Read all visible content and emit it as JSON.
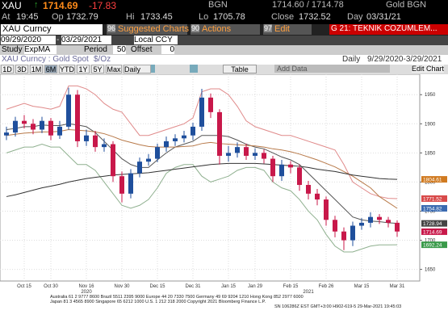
{
  "header": {
    "ticker": "XAU",
    "price": "1714.69",
    "change": "-17.83",
    "source": "BGN",
    "bid_ask": "1714.60 / 1714.78",
    "source_name": "Gold BGN",
    "stats": [
      {
        "label": "At",
        "value": "19:45"
      },
      {
        "label": "Op",
        "value": "1732.79"
      },
      {
        "label": "Hi",
        "value": "1733.45"
      },
      {
        "label": "Lo",
        "value": "1705.78"
      },
      {
        "label": "Close",
        "value": "1732.52"
      },
      {
        "label": "Day",
        "value": "03/31/21"
      }
    ]
  },
  "toolbar": {
    "security": "XAU Curncy",
    "buttons": [
      {
        "num": "96",
        "label": "Suggested Charts"
      },
      {
        "num": "90",
        "label": "Actions"
      },
      {
        "num": "97",
        "label": "Edit"
      }
    ],
    "launchpad": "G 21: TEKNIK COZUMLEM..."
  },
  "range": {
    "start": "09/29/2020",
    "end": "03/29/2021",
    "currency": "Local CCY"
  },
  "study": {
    "label": "Study",
    "name": "ExpMA",
    "period_label": "Period",
    "period": "50",
    "offset_label": "Offset",
    "offset": "0"
  },
  "chart_header": {
    "title": "XAU Curncy : Gold Spot",
    "unit": "$/Oz",
    "frequency": "Daily",
    "period": "9/29/2020-3/29/2021"
  },
  "chart_toolbar": {
    "ranges": [
      "1D",
      "3D",
      "1M",
      "6M",
      "YTD",
      "1Y",
      "5Y",
      "Max"
    ],
    "frequency": "Daily",
    "table": "Table",
    "add_data": "Add Data",
    "edit": "Edit Chart"
  },
  "chart_data": {
    "type": "candlestick",
    "categories": [
      null,
      null,
      "Oct 15",
      null,
      null,
      "Oct 30",
      null,
      null,
      null,
      "Nov 16",
      null,
      null,
      null,
      "Nov 30",
      null,
      null,
      null,
      "Dec 15",
      null,
      null,
      null,
      "Dec 31",
      null,
      null,
      null,
      "Jan 15",
      null,
      null,
      "Jan 29",
      null,
      null,
      null,
      "Feb 15",
      null,
      null,
      null,
      "Feb 26",
      null,
      null,
      null,
      "Mar 15",
      null,
      null,
      null,
      "Mar 31"
    ],
    "year_labels": [
      "2020",
      "2021"
    ],
    "open": [
      1880,
      1885,
      1905,
      1900,
      1890,
      1905,
      1880,
      1895,
      1950,
      1870,
      1880,
      1860,
      1865,
      1810,
      1780,
      1815,
      1835,
      1840,
      1860,
      1870,
      1875,
      1880,
      1895,
      1945,
      1920,
      1845,
      1850,
      1860,
      1845,
      1850,
      1840,
      1810,
      1830,
      1825,
      1795,
      1780,
      1770,
      1735,
      1715,
      1700,
      1725,
      1730,
      1740,
      1735,
      1730
    ],
    "high": [
      1895,
      1912,
      1915,
      1908,
      1912,
      1910,
      1905,
      1962,
      1958,
      1890,
      1888,
      1875,
      1870,
      1818,
      1822,
      1842,
      1848,
      1866,
      1878,
      1882,
      1888,
      1902,
      1960,
      1952,
      1925,
      1862,
      1868,
      1866,
      1858,
      1856,
      1845,
      1838,
      1836,
      1830,
      1802,
      1788,
      1775,
      1742,
      1722,
      1732,
      1738,
      1748,
      1745,
      1740,
      1734
    ],
    "low": [
      1872,
      1878,
      1892,
      1882,
      1884,
      1872,
      1874,
      1890,
      1860,
      1862,
      1852,
      1852,
      1800,
      1765,
      1772,
      1808,
      1828,
      1834,
      1852,
      1862,
      1868,
      1872,
      1888,
      1910,
      1830,
      1835,
      1842,
      1838,
      1838,
      1832,
      1800,
      1802,
      1815,
      1785,
      1770,
      1760,
      1725,
      1705,
      1683,
      1690,
      1718,
      1722,
      1728,
      1722,
      1706
    ],
    "close": [
      1885,
      1905,
      1900,
      1890,
      1905,
      1880,
      1895,
      1950,
      1870,
      1880,
      1860,
      1865,
      1810,
      1780,
      1815,
      1835,
      1840,
      1860,
      1870,
      1875,
      1880,
      1895,
      1945,
      1920,
      1845,
      1850,
      1860,
      1845,
      1850,
      1840,
      1810,
      1830,
      1825,
      1795,
      1780,
      1770,
      1735,
      1715,
      1700,
      1725,
      1730,
      1740,
      1735,
      1730,
      1715
    ],
    "up_color": "#1f4f9c",
    "down_color": "#c8184a",
    "series": [
      {
        "color": "#e08a8a",
        "values": [
          1925,
          1930,
          1935,
          1930,
          1928,
          1925,
          1930,
          1965,
          1965,
          1960,
          1950,
          1935,
          1925,
          1920,
          1900,
          1880,
          1880,
          1885,
          1890,
          1895,
          1900,
          1910,
          1955,
          1960,
          1960,
          1950,
          1930,
          1905,
          1895,
          1890,
          1885,
          1880,
          1880,
          1875,
          1870,
          1865,
          1860,
          1855,
          1830,
          1800,
          1790,
          1780,
          1775,
          1772,
          1771.52
        ]
      },
      {
        "color": "#8fb08f",
        "values": [
          1850,
          1855,
          1860,
          1860,
          1865,
          1860,
          1860,
          1845,
          1830,
          1830,
          1820,
          1800,
          1780,
          1760,
          1755,
          1760,
          1770,
          1790,
          1815,
          1825,
          1830,
          1830,
          1810,
          1800,
          1805,
          1810,
          1820,
          1825,
          1825,
          1820,
          1800,
          1790,
          1785,
          1770,
          1750,
          1735,
          1710,
          1690,
          1680,
          1680,
          1685,
          1690,
          1692,
          1692,
          1692.24
        ]
      },
      {
        "color": "#555555",
        "values": [
          1890,
          1892,
          1895,
          1895,
          1898,
          1897,
          1897,
          1900,
          1898,
          1895,
          1885,
          1870,
          1855,
          1840,
          1830,
          1825,
          1825,
          1838,
          1850,
          1860,
          1865,
          1870,
          1880,
          1880,
          1880,
          1878,
          1872,
          1865,
          1860,
          1857,
          1850,
          1843,
          1838,
          1830,
          1815,
          1800,
          1785,
          1770,
          1755,
          1740,
          1735,
          1733,
          1732,
          1730,
          1728.94
        ]
      },
      {
        "color": "#b87a4a",
        "values": [
          1880,
          1882,
          1884,
          1885,
          1886,
          1886,
          1887,
          1890,
          1889,
          1888,
          1886,
          1883,
          1878,
          1872,
          1868,
          1864,
          1861,
          1860,
          1860,
          1860,
          1861,
          1862,
          1866,
          1868,
          1866,
          1865,
          1864,
          1863,
          1862,
          1860,
          1857,
          1855,
          1852,
          1848,
          1843,
          1838,
          1832,
          1826,
          1818,
          1810,
          1800,
          1790,
          1775,
          1765,
          1754.82
        ]
      },
      {
        "color": "#333333",
        "values": [
          1775,
          1778,
          1782,
          1786,
          1790,
          1793,
          1796,
          1800,
          1803,
          1806,
          1808,
          1810,
          1812,
          1813,
          1814,
          1815,
          1816,
          1818,
          1820,
          1822,
          1824,
          1826,
          1828,
          1830,
          1831,
          1832,
          1832,
          1832,
          1832,
          1831,
          1830,
          1829,
          1828,
          1827,
          1825,
          1822,
          1820,
          1818,
          1815,
          1812,
          1810,
          1808,
          1806,
          1805,
          1804.61
        ]
      }
    ],
    "price_tags": [
      {
        "value": 1804.61,
        "color": "#d07a20"
      },
      {
        "value": 1771.52,
        "color": "#d84a4a"
      },
      {
        "value": 1754.82,
        "color": "#3a6ab0"
      },
      {
        "value": 1728.94,
        "color": "#444444"
      },
      {
        "value": 1714.69,
        "color": "#c8184a"
      },
      {
        "value": 1692.24,
        "color": "#3a9a4a"
      }
    ],
    "ylim": [
      1630,
      1985
    ],
    "yticks": [
      1650,
      1700,
      1750,
      1800,
      1850,
      1900,
      1950
    ],
    "grid": true
  },
  "footer": [
    "Australia 61 2 9777 8600 Brazil 5511 2395 9000 Europe 44 20 7330 7500 Germany 49 69 9204 1210 Hong Kong 852 2977 6000",
    "Japan 81 3 4565 8900     Singapore 65 6212 1000     U.S. 1 212 318 2000          Copyright 2021 Bloomberg Finance L.P.",
    "SN 106286Z EST  GMT+3:00 H902-619-5 29-Mar-2021 19:45:03"
  ]
}
